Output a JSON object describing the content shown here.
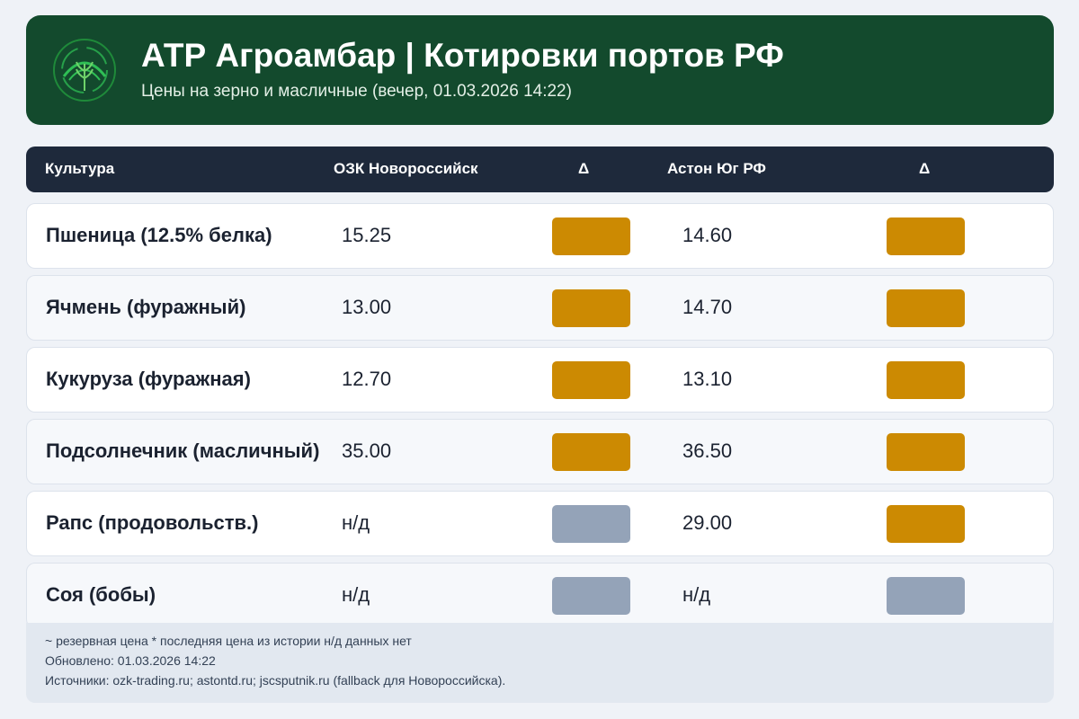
{
  "header": {
    "title": "АТР Агроамбар | Котировки портов РФ",
    "subtitle": "Цены на зерно и масличные (вечер, 01.03.2026 14:22)",
    "logo_icon": "wheat-signal-logo-icon"
  },
  "table": {
    "columns": [
      "Культура",
      "ОЗК Новороссийск",
      "Δ",
      "Астон Юг РФ",
      "Δ"
    ],
    "rows": [
      {
        "crop": "Пшеница (12.5% белка)",
        "ozk": "15.25",
        "ozk_delta": "available",
        "aston": "14.60",
        "aston_delta": "available"
      },
      {
        "crop": "Ячмень (фуражный)",
        "ozk": "13.00",
        "ozk_delta": "available",
        "aston": "14.70",
        "aston_delta": "available"
      },
      {
        "crop": "Кукуруза (фуражная)",
        "ozk": "12.70",
        "ozk_delta": "available",
        "aston": "13.10",
        "aston_delta": "available"
      },
      {
        "crop": "Подсолнечник (масличный)",
        "ozk": "35.00",
        "ozk_delta": "available",
        "aston": "36.50",
        "aston_delta": "available"
      },
      {
        "crop": "Рапс (продовольств.)",
        "ozk": "н/д",
        "ozk_delta": "na",
        "aston": "29.00",
        "aston_delta": "available"
      },
      {
        "crop": "Соя (бобы)",
        "ozk": "н/д",
        "ozk_delta": "na",
        "aston": "н/д",
        "aston_delta": "na"
      }
    ]
  },
  "footer": {
    "legend": "~ резервная цена   * последняя цена из истории   н/д данных нет",
    "updated": "Обновлено: 01.03.2026 14:22",
    "sources": "Источники: ozk-trading.ru; astontd.ru; jscsputnik.ru (fallback для Новороссийска)."
  },
  "colors": {
    "header_bg": "#134a2d",
    "table_head_bg": "#1e293b",
    "delta_available": "#cc8a02",
    "delta_na": "#94a3b8"
  }
}
